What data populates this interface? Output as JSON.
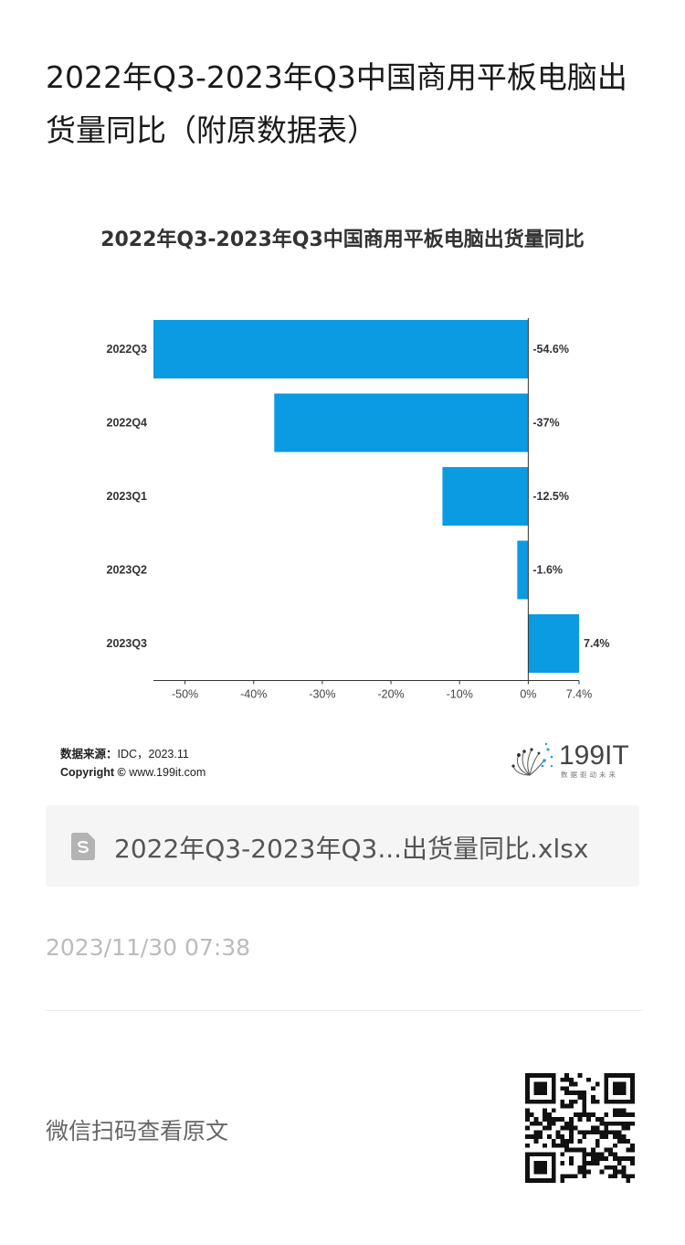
{
  "article": {
    "title": "2022年Q3-2023年Q3中国商用平板电脑出货量同比（附原数据表）",
    "timestamp": "2023/11/30 07:38",
    "qr_hint": "微信扫码查看原文"
  },
  "chart_data": {
    "type": "bar",
    "orientation": "horizontal",
    "title": "2022年Q3-2023年Q3中国商用平板电脑出货量同比",
    "categories": [
      "2022Q3",
      "2022Q4",
      "2023Q1",
      "2023Q2",
      "2023Q3"
    ],
    "values": [
      -54.6,
      -37,
      -12.5,
      -1.6,
      7.4
    ],
    "value_labels": [
      "-54.6%",
      "-37%",
      "-12.5%",
      "-1.6%",
      "7.4%"
    ],
    "x_ticks": [
      -50,
      -40,
      -30,
      -20,
      -10,
      0,
      7.4
    ],
    "x_tick_labels": [
      "-50%",
      "-40%",
      "-30%",
      "-20%",
      "-10%",
      "0%",
      "7.4%"
    ],
    "xlim": [
      -54.6,
      7.4
    ],
    "bar_color": "#0b9be3",
    "grid": false,
    "legend": false,
    "xlabel": "",
    "ylabel": ""
  },
  "source": {
    "label": "数据来源：",
    "text": "IDC，2023.11",
    "copyright_label": "Copyright ©",
    "copyright_text": " www.199it.com"
  },
  "brand": {
    "name": "199IT",
    "tagline": "数据驱动未来",
    "icon": "dandelion-logo-icon"
  },
  "attachment": {
    "icon": "spreadsheet-file-icon",
    "file_name": "2022年Q3-2023年Q3...出货量同比.xlsx",
    "icon_color": "#b3b3b3"
  },
  "qr_code": {
    "icon": "qr-code-icon"
  }
}
